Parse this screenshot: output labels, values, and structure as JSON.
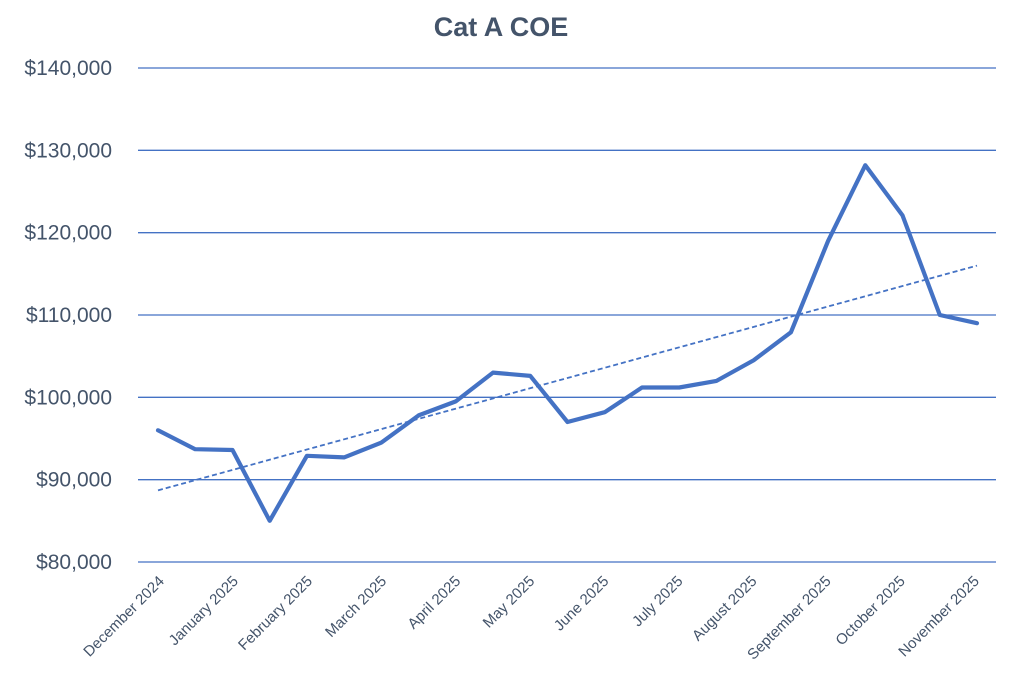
{
  "chart_data": {
    "type": "line",
    "title": "Cat A COE",
    "xlabel": "",
    "ylabel": "",
    "ylim": [
      80000,
      140000
    ],
    "y_ticks": [
      80000,
      90000,
      100000,
      110000,
      120000,
      130000,
      140000
    ],
    "y_tick_labels": [
      "$80,000",
      "$90,000",
      "$100,000",
      "$110,000",
      "$120,000",
      "$130,000",
      "$140,000"
    ],
    "x_tick_labels": [
      "December 2024",
      "January 2025",
      "February 2025",
      "March 2025",
      "April 2025",
      "May 2025",
      "June 2025",
      "July 2025",
      "August 2025",
      "September 2025",
      "October 2025",
      "November 2025"
    ],
    "grid": true,
    "legend": "none",
    "series": [
      {
        "values": [
          96000,
          93700,
          93600,
          85000,
          92900,
          92700,
          94500,
          97800,
          99500,
          103000,
          102600,
          97000,
          98200,
          101200,
          101200,
          102000,
          104500,
          107900,
          119000,
          128200,
          122100,
          110000,
          109000
        ],
        "style": "solid",
        "color": "#4472c4"
      },
      {
        "values": [
          88700,
          116000
        ],
        "style": "dashed-trendline",
        "color": "#4472c4"
      }
    ],
    "colors": {
      "line": "#4472c4",
      "grid": "#4472c4",
      "text": "#44546a"
    }
  }
}
